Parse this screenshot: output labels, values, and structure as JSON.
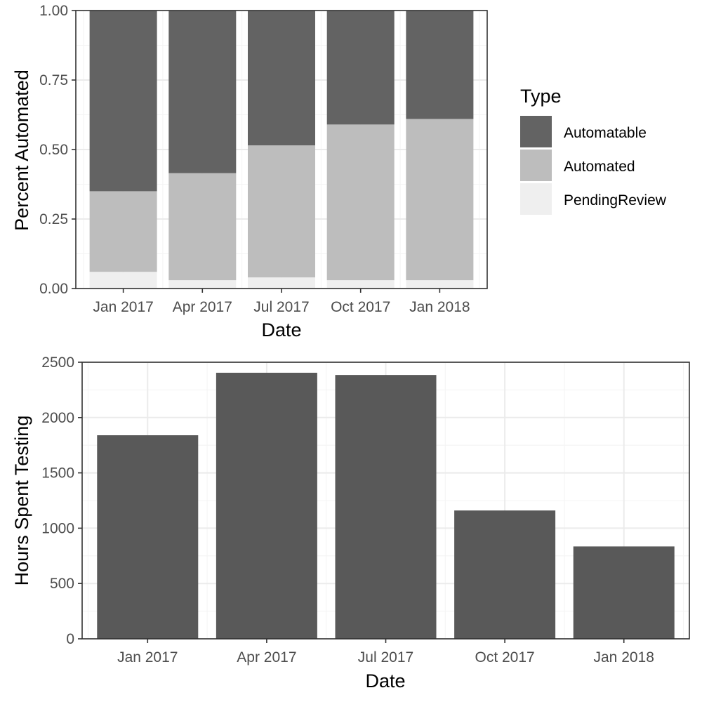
{
  "colors": {
    "Automatable": "#636363",
    "Automated": "#bdbdbd",
    "PendingReview": "#efefef",
    "hours_bar": "#595959",
    "grid_major": "#ebebeb",
    "grid_minor": "#f4f4f4",
    "panel_border": "#333333",
    "tick_text": "#4d4d4d",
    "axis_title": "#000000"
  },
  "chart_data": [
    {
      "type": "bar",
      "stacked": true,
      "title": "",
      "xlabel": "Date",
      "ylabel": "Percent Automated",
      "categories": [
        "2017-01-01",
        "2017-04-01",
        "2017-07-01",
        "2017-10-01",
        "2018-01-01"
      ],
      "x_ticks": [
        "Jan 2017",
        "Apr 2017",
        "Jul 2017",
        "Oct 2017",
        "Jan 2018"
      ],
      "ylim": [
        0,
        1
      ],
      "y_ticks": [
        "0.00",
        "0.25",
        "0.50",
        "0.75",
        "1.00"
      ],
      "y_tick_values": [
        0,
        0.25,
        0.5,
        0.75,
        1.0
      ],
      "series": [
        {
          "name": "PendingReview",
          "values": [
            0.06,
            0.03,
            0.04,
            0.03,
            0.03
          ]
        },
        {
          "name": "Automated",
          "values": [
            0.29,
            0.385,
            0.475,
            0.56,
            0.58
          ]
        },
        {
          "name": "Automatable",
          "values": [
            0.65,
            0.585,
            0.485,
            0.41,
            0.39
          ]
        }
      ],
      "legend": {
        "title": "Type",
        "position": "right",
        "entries": [
          "Automatable",
          "Automated",
          "PendingReview"
        ]
      },
      "grid": true
    },
    {
      "type": "bar",
      "title": "",
      "xlabel": "Date",
      "ylabel": "Hours Spent Testing",
      "categories": [
        "2017-01-01",
        "2017-04-01",
        "2017-07-01",
        "2017-10-01",
        "2018-01-01"
      ],
      "x_ticks": [
        "Jan 2017",
        "Apr 2017",
        "Jul 2017",
        "Oct 2017",
        "Jan 2018"
      ],
      "values": [
        1840,
        2405,
        2385,
        1160,
        835
      ],
      "ylim": [
        0,
        2500
      ],
      "y_ticks": [
        "0",
        "500",
        "1000",
        "1500",
        "2000",
        "2500"
      ],
      "y_tick_values": [
        0,
        500,
        1000,
        1500,
        2000,
        2500
      ],
      "grid": true
    }
  ]
}
